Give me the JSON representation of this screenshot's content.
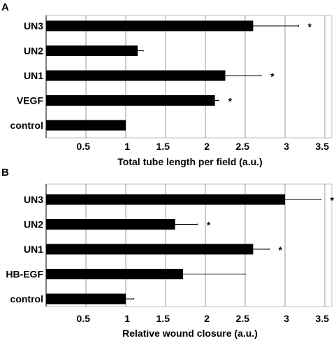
{
  "chart_data": [
    {
      "type": "bar",
      "orientation": "horizontal",
      "panel_label": "A",
      "categories": [
        "UN3",
        "UN2",
        "UN1",
        "VEGF",
        "control"
      ],
      "values": [
        2.6,
        1.15,
        2.25,
        2.12,
        1.0
      ],
      "errors": [
        0.57,
        0.07,
        0.45,
        0.05,
        0.0
      ],
      "significance": [
        "*",
        "",
        "*",
        "*",
        ""
      ],
      "xlabel": "Total tube length per field (a.u.)",
      "ylabel": "",
      "xlim": [
        0.0,
        3.5
      ],
      "xticks": [
        0.5,
        1.0,
        1.5,
        2.0,
        2.5,
        3.0,
        3.5
      ],
      "xtick_labels": [
        "0.5",
        "1",
        "1.5",
        "2",
        "2.5",
        "3",
        "3.5"
      ],
      "grid": "vertical",
      "bar_color": "#000000"
    },
    {
      "type": "bar",
      "orientation": "horizontal",
      "panel_label": "B",
      "categories": [
        "UN3",
        "UN2",
        "UN1",
        "HB-EGF",
        "control"
      ],
      "values": [
        3.0,
        1.62,
        2.6,
        1.72,
        1.0
      ],
      "errors": [
        0.45,
        0.28,
        0.2,
        0.78,
        0.1
      ],
      "significance": [
        "*",
        "*",
        "*",
        "",
        ""
      ],
      "xlabel": "Relative wound closure (a.u.)",
      "ylabel": "",
      "xlim": [
        0.0,
        3.5
      ],
      "xticks": [
        0.5,
        1.0,
        1.5,
        2.0,
        2.5,
        3.0,
        3.5
      ],
      "xtick_labels": [
        "0.5",
        "1",
        "1.5",
        "2",
        "2.5",
        "3",
        "3.5"
      ],
      "grid": "vertical",
      "bar_color": "#000000"
    }
  ]
}
